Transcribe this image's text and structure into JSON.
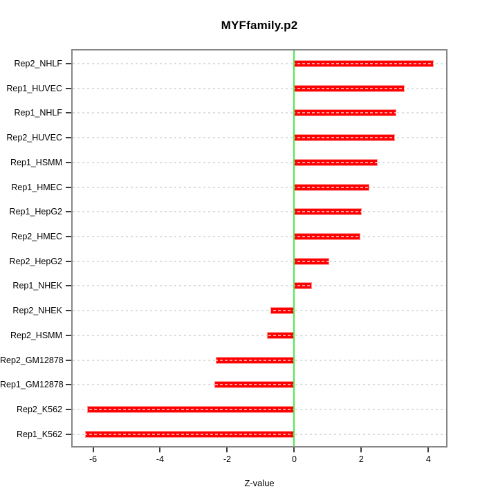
{
  "figure": {
    "title": "MYFfamily.p2",
    "xlabel": "Z-value"
  },
  "chart_data": {
    "type": "bar",
    "orientation": "horizontal",
    "title": "MYFfamily.p2",
    "xlabel": "Z-value",
    "ylabel": "",
    "categories": [
      "Rep2_NHLF",
      "Rep1_HUVEC",
      "Rep1_NHLF",
      "Rep2_HUVEC",
      "Rep1_HSMM",
      "Rep1_HMEC",
      "Rep1_HepG2",
      "Rep2_HMEC",
      "Rep2_HepG2",
      "Rep1_NHEK",
      "Rep2_NHEK",
      "Rep2_HSMM",
      "Rep2_GM12878",
      "Rep1_GM12878",
      "Rep2_K562",
      "Rep1_K562"
    ],
    "values": [
      4.16,
      3.29,
      3.05,
      3.0,
      2.48,
      2.24,
      2.02,
      1.98,
      1.04,
      0.53,
      -0.71,
      -0.82,
      -2.33,
      -2.38,
      -6.18,
      -6.24
    ],
    "xlim": [
      -6.65,
      4.57
    ],
    "xticks": [
      "-6",
      "-4",
      "-2",
      "0",
      "2",
      "4"
    ],
    "xtick_values": [
      -6,
      -4,
      -2,
      0,
      2,
      4
    ],
    "zero_line_at": 0,
    "grid": "horizontal dashed line per category",
    "legend": "none",
    "colors": {
      "bar": "#ff0000",
      "bar_edge": "#ff9999",
      "zero_line": "#4fe84f",
      "grid": "#dcdcdc",
      "box": "#878787",
      "text": "#000000"
    }
  }
}
